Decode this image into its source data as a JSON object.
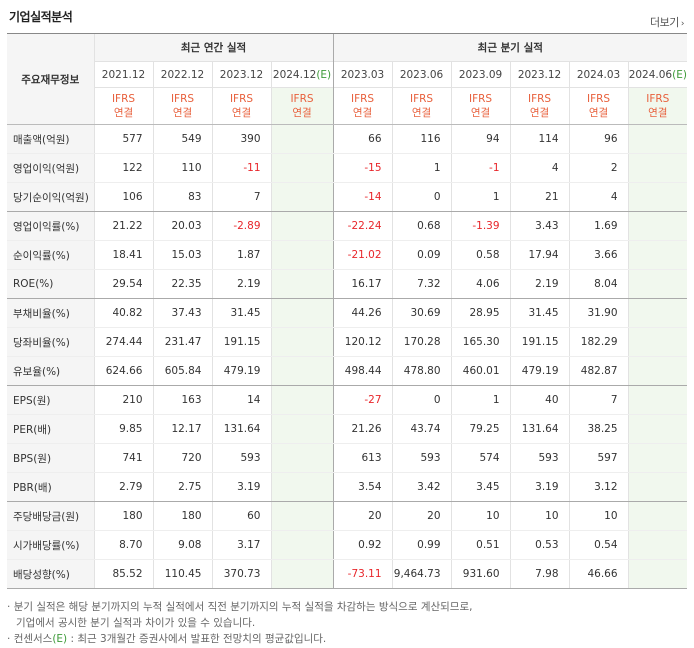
{
  "header": {
    "title": "기업실적분석",
    "more_label": "더보기",
    "more_arrow": "›"
  },
  "table": {
    "row_header_label": "주요재무정보",
    "group_annual": "최근 연간 실적",
    "group_quarter": "최근 분기 실적",
    "annual_periods": [
      "2021.12",
      "2022.12",
      "2023.12",
      "2024.12"
    ],
    "quarter_periods": [
      "2023.03",
      "2023.06",
      "2023.09",
      "2023.12",
      "2024.03",
      "2024.06"
    ],
    "estimate_suffix": "(E)",
    "basis_top": "IFRS",
    "basis_bottom": "연결",
    "rows": [
      {
        "label": "매출액(억원)",
        "a": [
          "577",
          "549",
          "390",
          ""
        ],
        "q": [
          "66",
          "116",
          "94",
          "114",
          "96",
          ""
        ]
      },
      {
        "label": "영업이익(억원)",
        "a": [
          "122",
          "110",
          "-11",
          ""
        ],
        "q": [
          "-15",
          "1",
          "-1",
          "4",
          "2",
          ""
        ]
      },
      {
        "label": "당기순이익(억원)",
        "a": [
          "106",
          "83",
          "7",
          ""
        ],
        "q": [
          "-14",
          "0",
          "1",
          "21",
          "4",
          ""
        ]
      },
      {
        "label": "영업이익률(%)",
        "a": [
          "21.22",
          "20.03",
          "-2.89",
          ""
        ],
        "q": [
          "-22.24",
          "0.68",
          "-1.39",
          "3.43",
          "1.69",
          ""
        ]
      },
      {
        "label": "순이익률(%)",
        "a": [
          "18.41",
          "15.03",
          "1.87",
          ""
        ],
        "q": [
          "-21.02",
          "0.09",
          "0.58",
          "17.94",
          "3.66",
          ""
        ]
      },
      {
        "label": "ROE(%)",
        "a": [
          "29.54",
          "22.35",
          "2.19",
          ""
        ],
        "q": [
          "16.17",
          "7.32",
          "4.06",
          "2.19",
          "8.04",
          ""
        ]
      },
      {
        "label": "부채비율(%)",
        "a": [
          "40.82",
          "37.43",
          "31.45",
          ""
        ],
        "q": [
          "44.26",
          "30.69",
          "28.95",
          "31.45",
          "31.90",
          ""
        ]
      },
      {
        "label": "당좌비율(%)",
        "a": [
          "274.44",
          "231.47",
          "191.15",
          ""
        ],
        "q": [
          "120.12",
          "170.28",
          "165.30",
          "191.15",
          "182.29",
          ""
        ]
      },
      {
        "label": "유보율(%)",
        "a": [
          "624.66",
          "605.84",
          "479.19",
          ""
        ],
        "q": [
          "498.44",
          "478.80",
          "460.01",
          "479.19",
          "482.87",
          ""
        ]
      },
      {
        "label": "EPS(원)",
        "a": [
          "210",
          "163",
          "14",
          ""
        ],
        "q": [
          "-27",
          "0",
          "1",
          "40",
          "7",
          ""
        ]
      },
      {
        "label": "PER(배)",
        "a": [
          "9.85",
          "12.17",
          "131.64",
          ""
        ],
        "q": [
          "21.26",
          "43.74",
          "79.25",
          "131.64",
          "38.25",
          ""
        ]
      },
      {
        "label": "BPS(원)",
        "a": [
          "741",
          "720",
          "593",
          ""
        ],
        "q": [
          "613",
          "593",
          "574",
          "593",
          "597",
          ""
        ]
      },
      {
        "label": "PBR(배)",
        "a": [
          "2.79",
          "2.75",
          "3.19",
          ""
        ],
        "q": [
          "3.54",
          "3.42",
          "3.45",
          "3.19",
          "3.12",
          ""
        ]
      },
      {
        "label": "주당배당금(원)",
        "a": [
          "180",
          "180",
          "60",
          ""
        ],
        "q": [
          "20",
          "20",
          "10",
          "10",
          "10",
          ""
        ]
      },
      {
        "label": "시가배당률(%)",
        "a": [
          "8.70",
          "9.08",
          "3.17",
          ""
        ],
        "q": [
          "0.92",
          "0.99",
          "0.51",
          "0.53",
          "0.54",
          ""
        ]
      },
      {
        "label": "배당성향(%)",
        "a": [
          "85.52",
          "110.45",
          "370.73",
          ""
        ],
        "q": [
          "-73.11",
          "9,464.73",
          "931.60",
          "7.98",
          "46.66",
          ""
        ]
      }
    ]
  },
  "notes": {
    "line1": "분기 실적은 해당 분기까지의 누적 실적에서 직전 분기까지의 누적 실적을 차감하는 방식으로 계산되므로,",
    "line2": "기업에서 공시한 분기 실적과 차이가 있을 수 있습니다.",
    "line3_pre": "컨센서스",
    "line3_e": "(E)",
    "line3_post": ": 최근 3개월간 증권사에서 발표한 전망치의 평균값입니다."
  }
}
